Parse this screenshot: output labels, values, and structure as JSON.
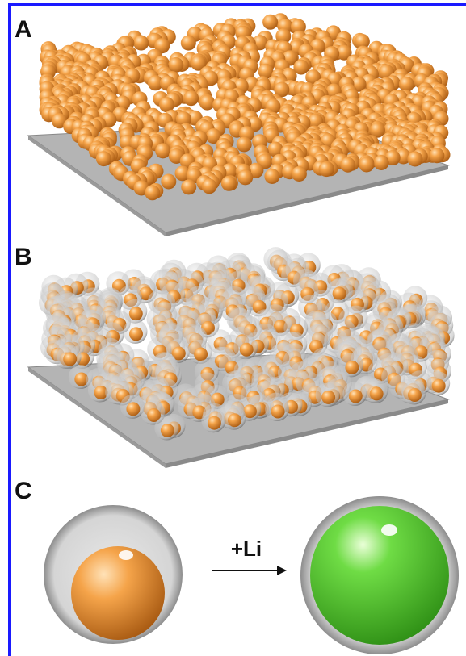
{
  "panels": [
    {
      "label": "A"
    },
    {
      "label": "B"
    },
    {
      "label": "C"
    }
  ],
  "arrow_label": "+Li"
}
